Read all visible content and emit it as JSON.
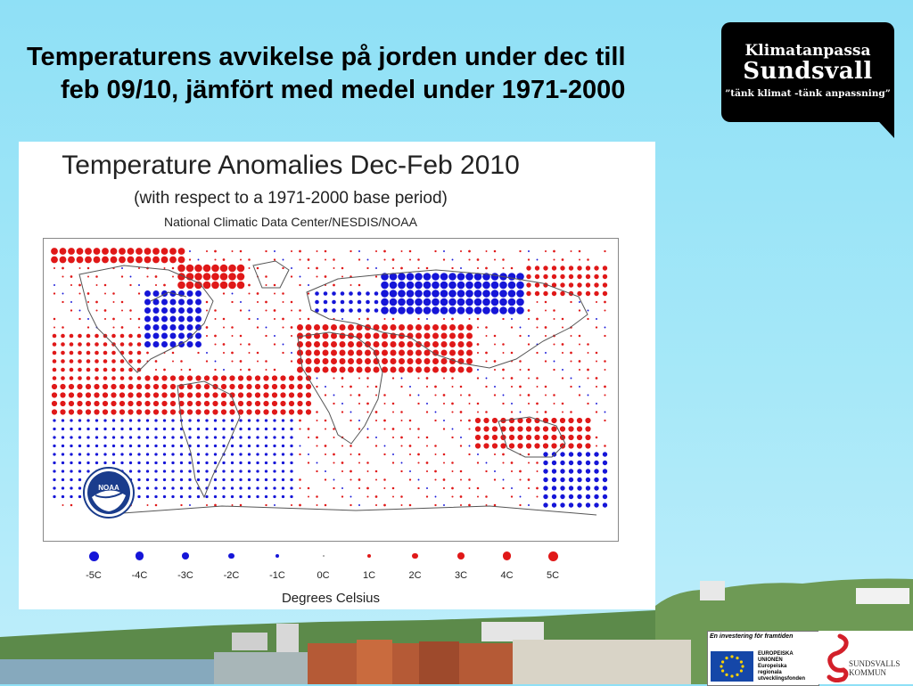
{
  "slide": {
    "title_line1": "Temperaturens avvikelse på jorden under dec till",
    "title_line2": "feb 09/10, jämfört med medel under 1971-2000"
  },
  "logo": {
    "line1": "Klimatanpassa",
    "line2": "Sundsvall",
    "line3": "”tänk klimat -tänk anpassning”"
  },
  "figure": {
    "title": "Temperature Anomalies Dec-Feb 2010",
    "subtitle": "(with respect to a 1971-2000 base period)",
    "source": "National Climatic Data Center/NESDIS/NOAA",
    "badge_text": "NOAA",
    "scale_caption": "Degrees Celsius",
    "scale": [
      {
        "label": "-5C",
        "value": -5
      },
      {
        "label": "-4C",
        "value": -4
      },
      {
        "label": "-3C",
        "value": -3
      },
      {
        "label": "-2C",
        "value": -2
      },
      {
        "label": "-1C",
        "value": -1
      },
      {
        "label": "0C",
        "value": 0
      },
      {
        "label": "1C",
        "value": 1
      },
      {
        "label": "2C",
        "value": 2
      },
      {
        "label": "3C",
        "value": 3
      },
      {
        "label": "4C",
        "value": 4
      },
      {
        "label": "5C",
        "value": 5
      }
    ],
    "colors": {
      "warm": "#e01818",
      "cold": "#1515d8"
    }
  },
  "eu": {
    "caption": "En investering för framtiden",
    "text": [
      "EUROPEISKA",
      "UNIONEN",
      "Europeiska",
      "regionala",
      "utvecklingsfonden"
    ]
  },
  "municipality": {
    "name_line1": "SUNDSVALLS",
    "name_line2": "KOMMUN"
  }
}
